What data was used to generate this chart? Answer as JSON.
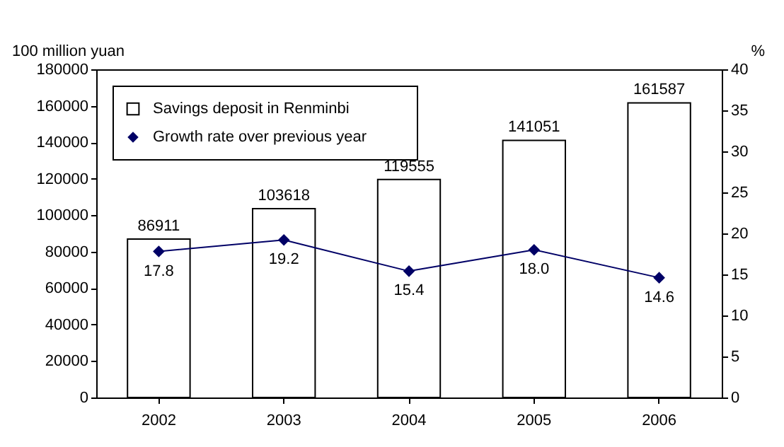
{
  "chart_data": {
    "type": "bar",
    "categories": [
      "2002",
      "2003",
      "2004",
      "2005",
      "2006"
    ],
    "ylabel": "100 million yuan",
    "y2label": "%",
    "ylim": [
      0,
      180000
    ],
    "yticks": [
      0,
      20000,
      40000,
      60000,
      80000,
      100000,
      120000,
      140000,
      160000,
      180000
    ],
    "y2lim": [
      0,
      40
    ],
    "y2ticks": [
      0,
      5,
      10,
      15,
      20,
      25,
      30,
      35,
      40
    ],
    "legend": "top left",
    "marker": "diamond",
    "grid": false,
    "series": [
      {
        "name": "Savings deposit in Renminbi",
        "color": "#ffffff",
        "values": [
          86911,
          103618,
          119555,
          141051,
          161587
        ],
        "value_labels": [
          "86911",
          "103618",
          "119555",
          "141051",
          "161587"
        ]
      },
      {
        "name": "Growth rate over previous year",
        "type": "line",
        "axis": "y2",
        "color": "#000066",
        "values": [
          17.8,
          19.2,
          15.4,
          18.0,
          14.6
        ],
        "value_labels": [
          "17.8",
          "19.2",
          "15.4",
          "18.0",
          "14.6"
        ]
      }
    ]
  }
}
